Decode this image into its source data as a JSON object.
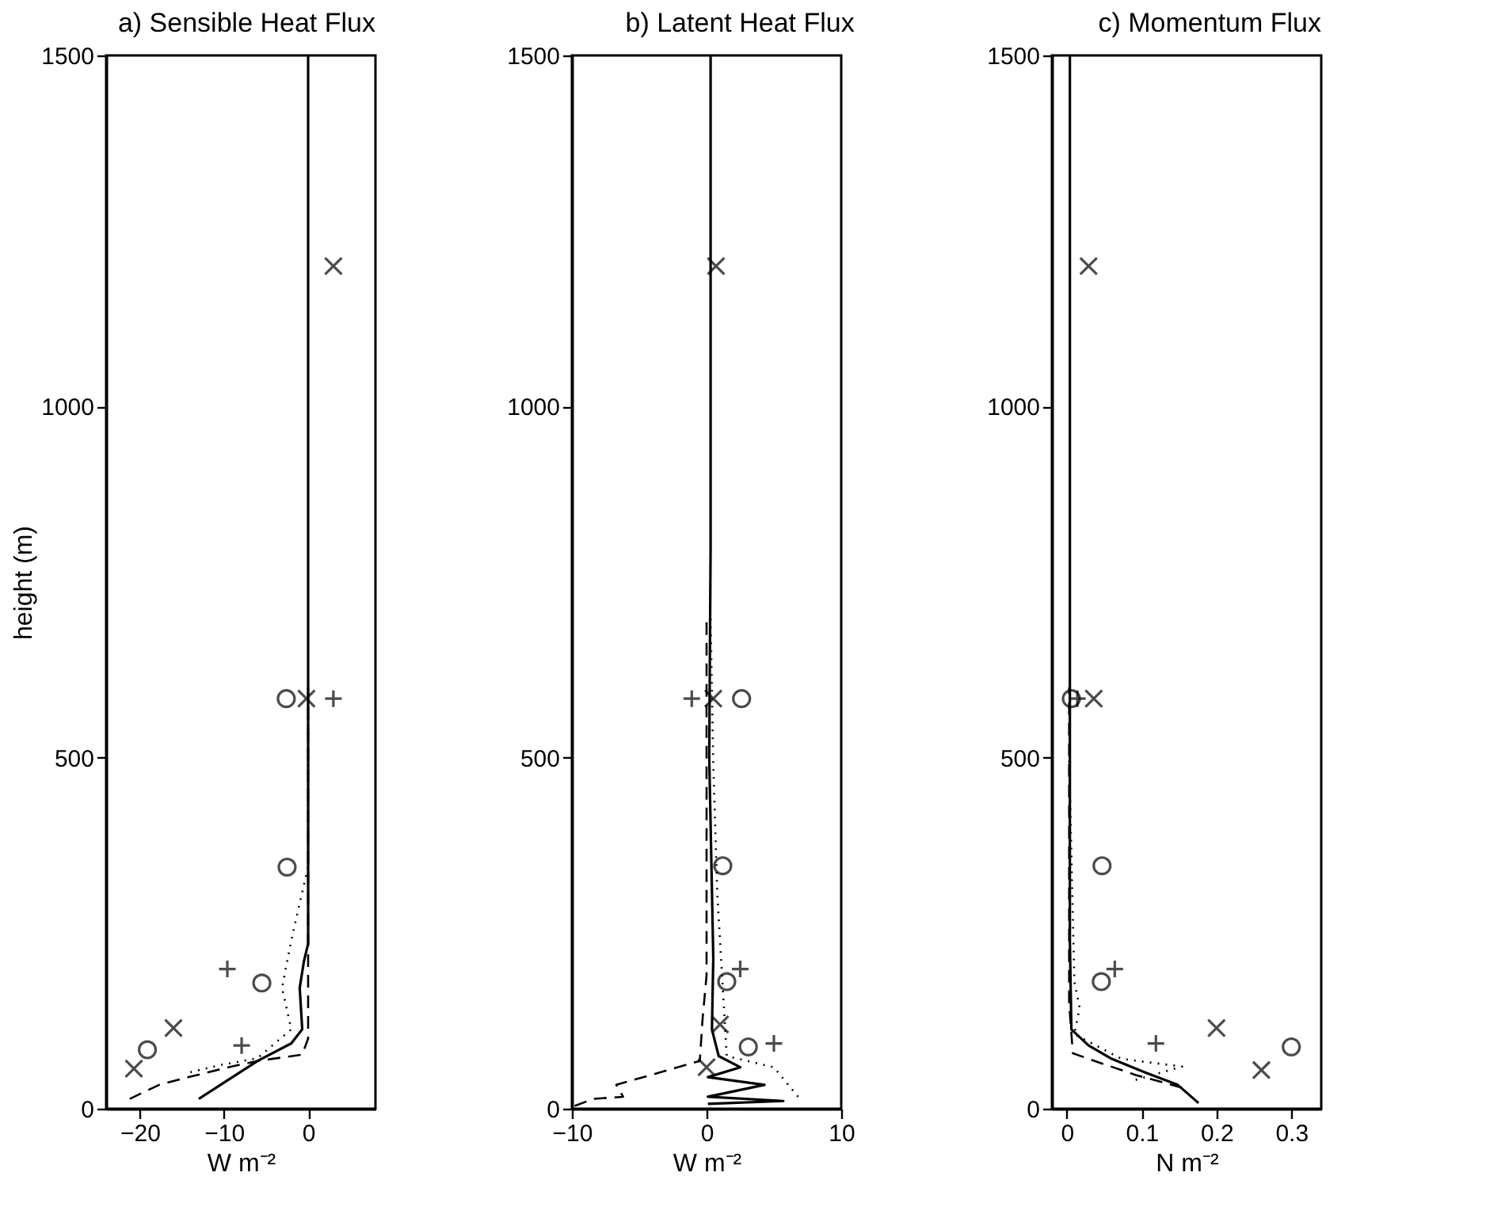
{
  "chart_data": [
    {
      "type": "line",
      "title": "a)  Sensible Heat Flux",
      "xlabel": "W m⁻²",
      "ylabel": "height (m)",
      "xlim": [
        -24,
        8
      ],
      "xticks": [
        -20,
        -10,
        0
      ],
      "ylim": [
        0,
        1500
      ],
      "yticks": [
        0,
        500,
        1000,
        1500
      ],
      "grid": false,
      "series": [
        {
          "color": "#000000",
          "line_style": "solid",
          "x": [
            -13,
            -9.5,
            -6,
            -2,
            -0.7,
            -1,
            -0.5,
            0,
            0
          ],
          "values": [
            14,
            41,
            68,
            93,
            113,
            172,
            210,
            235,
            1500
          ]
        },
        {
          "color": "#000000",
          "line_style": "dashed",
          "x": [
            -21.2,
            -17.7,
            -14.2,
            -9.5,
            -6,
            -0.7,
            0,
            0
          ],
          "values": [
            14,
            34,
            45,
            59,
            68,
            77,
            100,
            600
          ]
        },
        {
          "color": "#000000",
          "line_style": "dotted",
          "x": [
            -14,
            -10.5,
            -6,
            -2,
            -3.1,
            -2,
            0,
            0
          ],
          "values": [
            52,
            62,
            72,
            113,
            172,
            240,
            345,
            600
          ]
        },
        {
          "type": "scatter",
          "color": "#000000",
          "marker": "cross",
          "x": [
            -0.2,
            -16,
            -20.7,
            3
          ],
          "values": [
            584,
            115,
            57,
            1200
          ]
        },
        {
          "type": "scatter",
          "color": "#000000",
          "marker": "plus",
          "x": [
            3,
            -9.6,
            -7.9
          ],
          "values": [
            584,
            199,
            90
          ]
        },
        {
          "type": "scatter",
          "color": "#000000",
          "marker": "circle",
          "x": [
            -2.6,
            -2.5,
            -5.5,
            -19.1
          ],
          "values": [
            584,
            344,
            179,
            84
          ]
        }
      ]
    },
    {
      "type": "line",
      "title": "b)  Latent Heat Flux",
      "xlabel": "W m⁻²",
      "xlim": [
        -10,
        10
      ],
      "xticks": [
        -10,
        0,
        10
      ],
      "ylim": [
        0,
        1500
      ],
      "yticks": [
        0,
        500,
        1000,
        1500
      ],
      "grid": false,
      "series": [
        {
          "color": "#000000",
          "line_style": "solid",
          "x": [
            0.1,
            5.7,
            0.1,
            4.3,
            0.1,
            2.5,
            0.9,
            0.4,
            0.5,
            0.2,
            0.3,
            0.3
          ],
          "values": [
            7,
            11,
            17,
            34,
            45,
            59,
            75,
            113,
            215,
            500,
            800,
            1500
          ]
        },
        {
          "color": "#000000",
          "line_style": "dashed",
          "x": [
            -9.8,
            -8.4,
            -6.2,
            -6.7,
            -0.5,
            -0.3,
            0,
            0
          ],
          "values": [
            4,
            14,
            17,
            34,
            68,
            127,
            190,
            700
          ]
        },
        {
          "color": "#000000",
          "line_style": "dotted",
          "x": [
            6.8,
            5,
            1.5,
            0.8,
            0.5,
            0.3
          ],
          "values": [
            17,
            59,
            75,
            305,
            490,
            700
          ]
        },
        {
          "type": "scatter",
          "color": "#000000",
          "marker": "cross",
          "x": [
            0.5,
            1,
            0,
            0.7
          ],
          "values": [
            584,
            120,
            59,
            1200
          ]
        },
        {
          "type": "scatter",
          "color": "#000000",
          "marker": "plus",
          "x": [
            -1.1,
            2.5,
            5
          ],
          "values": [
            584,
            199,
            93
          ]
        },
        {
          "type": "scatter",
          "color": "#000000",
          "marker": "circle",
          "x": [
            2.6,
            1.2,
            1.5,
            3.1
          ],
          "values": [
            584,
            346,
            181,
            88
          ]
        }
      ]
    },
    {
      "type": "line",
      "title": "c)  Momentum Flux",
      "xlabel": "N m⁻²",
      "xlim": [
        -0.02,
        0.34
      ],
      "xticks": [
        0,
        0.1,
        0.2,
        0.3
      ],
      "ylim": [
        0,
        1500
      ],
      "yticks": [
        0,
        500,
        1000,
        1500
      ],
      "grid": false,
      "series": [
        {
          "color": "#000000",
          "line_style": "solid",
          "x": [
            0.176,
            0.16,
            0.148,
            0.104,
            0.06,
            0.029,
            0.006,
            0.004,
            0.004
          ],
          "values": [
            8,
            23,
            34,
            52,
            71,
            90,
            113,
            240,
            1500
          ]
        },
        {
          "color": "#000000",
          "line_style": "dashed",
          "x": [
            0.154,
            0.092,
            0.029,
            0.008,
            0.003,
            0.003
          ],
          "values": [
            30,
            48,
            71,
            79,
            150,
            600
          ]
        },
        {
          "color": "#000000",
          "line_style": "dotted",
          "x": [
            0.092,
            0.154,
            0.073,
            0.01,
            0.017,
            0.01,
            0.003
          ],
          "values": [
            41,
            60,
            71,
            106,
            144,
            181,
            500
          ]
        },
        {
          "type": "scatter",
          "color": "#000000",
          "marker": "cross",
          "x": [
            0.036,
            0.2,
            0.26,
            0.029
          ],
          "values": [
            584,
            115,
            55,
            1200
          ]
        },
        {
          "type": "scatter",
          "color": "#000000",
          "marker": "plus",
          "x": [
            0.014,
            0.064,
            0.119
          ],
          "values": [
            584,
            199,
            93
          ]
        },
        {
          "type": "scatter",
          "color": "#000000",
          "marker": "circle",
          "x": [
            0.006,
            0.047,
            0.046,
            0.3
          ],
          "values": [
            584,
            346,
            181,
            88
          ]
        }
      ]
    }
  ]
}
